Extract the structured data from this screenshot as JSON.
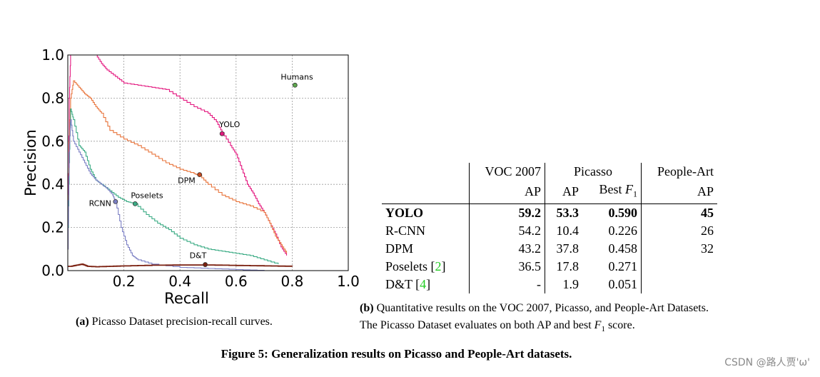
{
  "chart_data": {
    "type": "line",
    "xlabel": "Recall",
    "ylabel": "Precision",
    "xlim": [
      0.0,
      1.0
    ],
    "ylim": [
      0.0,
      1.0
    ],
    "x_ticks": [
      "0.2",
      "0.4",
      "0.6",
      "0.8",
      "1.0"
    ],
    "y_ticks": [
      "0.0",
      "0.2",
      "0.4",
      "0.6",
      "0.8",
      "1.0"
    ],
    "grid": true,
    "series": [
      {
        "name": "YOLO",
        "color": "#e3177f",
        "points": [
          [
            0,
            0.1
          ],
          [
            0.005,
            0.8
          ],
          [
            0.01,
            1.0
          ],
          [
            0.03,
            1.0
          ],
          [
            0.05,
            1.0
          ],
          [
            0.1,
            1.0
          ],
          [
            0.12,
            0.96
          ],
          [
            0.14,
            0.93
          ],
          [
            0.17,
            0.9
          ],
          [
            0.2,
            0.87
          ],
          [
            0.25,
            0.86
          ],
          [
            0.3,
            0.85
          ],
          [
            0.35,
            0.84
          ],
          [
            0.4,
            0.8
          ],
          [
            0.45,
            0.76
          ],
          [
            0.5,
            0.73
          ],
          [
            0.53,
            0.69
          ],
          [
            0.55,
            0.64
          ],
          [
            0.58,
            0.58
          ],
          [
            0.6,
            0.54
          ],
          [
            0.62,
            0.47
          ],
          [
            0.64,
            0.4
          ],
          [
            0.66,
            0.36
          ],
          [
            0.68,
            0.31
          ],
          [
            0.7,
            0.27
          ],
          [
            0.72,
            0.22
          ],
          [
            0.74,
            0.17
          ],
          [
            0.76,
            0.11
          ],
          [
            0.78,
            0.07
          ]
        ]
      },
      {
        "name": "DPM",
        "color": "#e8743b",
        "points": [
          [
            0,
            0.1
          ],
          [
            0.005,
            0.6
          ],
          [
            0.01,
            0.8
          ],
          [
            0.02,
            0.88
          ],
          [
            0.04,
            0.85
          ],
          [
            0.06,
            0.82
          ],
          [
            0.08,
            0.8
          ],
          [
            0.1,
            0.76
          ],
          [
            0.12,
            0.73
          ],
          [
            0.15,
            0.65
          ],
          [
            0.2,
            0.61
          ],
          [
            0.25,
            0.58
          ],
          [
            0.3,
            0.54
          ],
          [
            0.35,
            0.5
          ],
          [
            0.4,
            0.47
          ],
          [
            0.45,
            0.45
          ],
          [
            0.47,
            0.44
          ],
          [
            0.5,
            0.4
          ],
          [
            0.55,
            0.35
          ],
          [
            0.6,
            0.32
          ],
          [
            0.65,
            0.3
          ],
          [
            0.7,
            0.27
          ],
          [
            0.72,
            0.22
          ],
          [
            0.74,
            0.16
          ],
          [
            0.76,
            0.12
          ],
          [
            0.78,
            0.08
          ]
        ]
      },
      {
        "name": "Poselets",
        "color": "#3aab84",
        "points": [
          [
            0,
            0.1
          ],
          [
            0.005,
            0.5
          ],
          [
            0.01,
            0.75
          ],
          [
            0.02,
            0.7
          ],
          [
            0.04,
            0.58
          ],
          [
            0.06,
            0.55
          ],
          [
            0.08,
            0.47
          ],
          [
            0.1,
            0.42
          ],
          [
            0.12,
            0.4
          ],
          [
            0.15,
            0.37
          ],
          [
            0.18,
            0.34
          ],
          [
            0.21,
            0.32
          ],
          [
            0.24,
            0.31
          ],
          [
            0.28,
            0.26
          ],
          [
            0.32,
            0.22
          ],
          [
            0.36,
            0.19
          ],
          [
            0.4,
            0.15
          ],
          [
            0.45,
            0.12
          ],
          [
            0.5,
            0.1
          ],
          [
            0.55,
            0.09
          ],
          [
            0.6,
            0.08
          ],
          [
            0.65,
            0.07
          ],
          [
            0.7,
            0.05
          ],
          [
            0.75,
            0.03
          ]
        ]
      },
      {
        "name": "RCNN",
        "color": "#7b7fc4",
        "points": [
          [
            0,
            0.1
          ],
          [
            0.005,
            0.55
          ],
          [
            0.01,
            0.7
          ],
          [
            0.02,
            0.6
          ],
          [
            0.04,
            0.55
          ],
          [
            0.06,
            0.5
          ],
          [
            0.08,
            0.45
          ],
          [
            0.1,
            0.42
          ],
          [
            0.12,
            0.4
          ],
          [
            0.14,
            0.38
          ],
          [
            0.16,
            0.35
          ],
          [
            0.17,
            0.32
          ],
          [
            0.19,
            0.2
          ],
          [
            0.21,
            0.12
          ],
          [
            0.23,
            0.07
          ],
          [
            0.25,
            0.05
          ],
          [
            0.3,
            0.03
          ],
          [
            0.4,
            0.015
          ],
          [
            0.5,
            0.01
          ],
          [
            0.6,
            0.005
          ],
          [
            0.7,
            0.0
          ]
        ]
      },
      {
        "name": "D&T",
        "color": "#7a1f0f",
        "points": [
          [
            0,
            0.02
          ],
          [
            0.01,
            0.02
          ],
          [
            0.03,
            0.025
          ],
          [
            0.05,
            0.03
          ],
          [
            0.07,
            0.02
          ],
          [
            0.1,
            0.018
          ],
          [
            0.15,
            0.02
          ],
          [
            0.2,
            0.022
          ],
          [
            0.3,
            0.025
          ],
          [
            0.4,
            0.026
          ],
          [
            0.5,
            0.026
          ],
          [
            0.6,
            0.024
          ],
          [
            0.7,
            0.022
          ],
          [
            0.8,
            0.02
          ]
        ]
      }
    ],
    "markers": [
      {
        "label": "Humans",
        "x": 0.81,
        "y": 0.86,
        "color": "#5da84e"
      },
      {
        "label": "YOLO",
        "x": 0.55,
        "y": 0.635,
        "color": "#e3177f"
      },
      {
        "label": "DPM",
        "x": 0.47,
        "y": 0.445,
        "color": "#c44a1e"
      },
      {
        "label": "Poselets",
        "x": 0.24,
        "y": 0.31,
        "color": "#3aab84"
      },
      {
        "label": "RCNN",
        "x": 0.17,
        "y": 0.32,
        "color": "#7b7fc4"
      },
      {
        "label": "D&T",
        "x": 0.49,
        "y": 0.028,
        "color": "#7a1f0f"
      }
    ]
  },
  "captions": {
    "a_label": "(a)",
    "a_text": "Picasso Dataset precision-recall curves.",
    "b_label": "(b)",
    "b_line1": "Quantitative results on the VOC 2007, Picasso, and People-Art Datasets.",
    "b_line2_pre": "The Picasso Dataset evaluates on both AP and best ",
    "b_line2_post": " score.",
    "f1_F": "F",
    "f1_sub": "1",
    "figure_label": "Figure 5:",
    "figure_text": "Generalization results on Picasso and People-Art datasets."
  },
  "table": {
    "headers": {
      "voc": "VOC 2007",
      "picasso": "Picasso",
      "people_art": "People-Art",
      "ap": "AP",
      "best": "Best "
    },
    "rows": [
      {
        "name": "YOLO",
        "cite": "",
        "voc": "59.2",
        "pic_ap": "53.3",
        "pic_f1": "0.590",
        "people": "45"
      },
      {
        "name": "R-CNN",
        "cite": "",
        "voc": "54.2",
        "pic_ap": "10.4",
        "pic_f1": "0.226",
        "people": "26"
      },
      {
        "name": "DPM",
        "cite": "",
        "voc": "43.2",
        "pic_ap": "37.8",
        "pic_f1": "0.458",
        "people": "32"
      },
      {
        "name": "Poselets ",
        "cite": "2",
        "voc": "36.5",
        "pic_ap": "17.8",
        "pic_f1": "0.271",
        "people": ""
      },
      {
        "name": "D&T ",
        "cite": "4",
        "voc": "-",
        "pic_ap": "1.9",
        "pic_f1": "0.051",
        "people": ""
      }
    ]
  },
  "watermark": "CSDN @路人贾'ω'"
}
